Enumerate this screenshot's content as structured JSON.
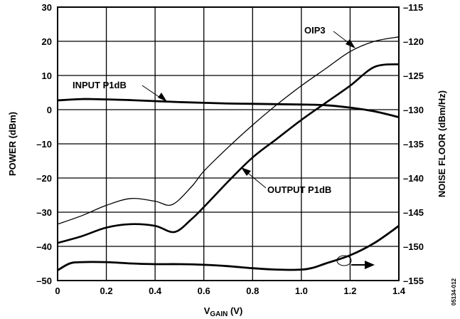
{
  "chart_data": {
    "type": "line",
    "xlabel": "V",
    "xlabel_subscript": "GAIN",
    "xlabel_unit": " (V)",
    "ylabel": "POWER (dBm)",
    "y2label": "NOISE FLOOR (dBm/Hz)",
    "xlim": [
      0,
      1.4
    ],
    "ylim": [
      -50,
      30
    ],
    "y2lim": [
      -155,
      -115
    ],
    "grid": true,
    "x_ticks": [
      "0",
      "0.2",
      "0.4",
      "0.6",
      "0.8",
      "1.0",
      "1.2",
      "1.4"
    ],
    "y_ticks": [
      "30",
      "20",
      "10",
      "0",
      "–10",
      "–20",
      "–30",
      "–40",
      "–50"
    ],
    "y2_ticks": [
      "–115",
      "–120",
      "–125",
      "–130",
      "–135",
      "–140",
      "–145",
      "–150",
      "–155"
    ],
    "series": [
      {
        "name": "OIP3",
        "axis": "left",
        "x": [
          0,
          0.1,
          0.2,
          0.3,
          0.4,
          0.47,
          0.55,
          0.6,
          0.7,
          0.8,
          0.9,
          1.0,
          1.1,
          1.2,
          1.3,
          1.4
        ],
        "y": [
          -33.5,
          -31,
          -28,
          -26,
          -26.8,
          -27.8,
          -22.5,
          -18,
          -11,
          -4.5,
          1.5,
          7,
          12,
          17,
          20,
          21.3
        ]
      },
      {
        "name": "OUTPUT P1dB",
        "axis": "left",
        "x": [
          0,
          0.1,
          0.2,
          0.3,
          0.4,
          0.48,
          0.55,
          0.6,
          0.7,
          0.8,
          0.9,
          1.0,
          1.1,
          1.2,
          1.3,
          1.4
        ],
        "y": [
          -39,
          -37,
          -34.5,
          -33.5,
          -34,
          -35.8,
          -32,
          -28.5,
          -21,
          -14,
          -8.5,
          -3,
          2,
          7,
          12.5,
          13.3
        ]
      },
      {
        "name": "INPUT P1dB",
        "axis": "left",
        "x": [
          0,
          0.1,
          0.2,
          0.3,
          0.4,
          0.5,
          0.6,
          0.7,
          0.8,
          0.9,
          1.0,
          1.1,
          1.2,
          1.3,
          1.4
        ],
        "y": [
          2.7,
          3.1,
          3.0,
          2.8,
          2.5,
          2.2,
          2.0,
          1.8,
          1.7,
          1.6,
          1.5,
          1.3,
          0.6,
          -0.5,
          -2.2
        ]
      },
      {
        "name": "NOISE FLOOR",
        "axis": "right",
        "x": [
          0,
          0.05,
          0.1,
          0.2,
          0.3,
          0.4,
          0.5,
          0.6,
          0.7,
          0.8,
          0.9,
          1.0,
          1.05,
          1.1,
          1.2,
          1.3,
          1.4
        ],
        "y": [
          -153.5,
          -152.5,
          -152.3,
          -152.3,
          -152.5,
          -152.6,
          -152.6,
          -152.7,
          -152.9,
          -153.2,
          -153.4,
          -153.4,
          -153.1,
          -152.5,
          -151.3,
          -149.5,
          -147
        ]
      }
    ],
    "annotations": [
      {
        "text": "OIP3"
      },
      {
        "text": "INPUT P1dB"
      },
      {
        "text": "OUTPUT P1dB"
      }
    ]
  },
  "document_id": "05134-012"
}
